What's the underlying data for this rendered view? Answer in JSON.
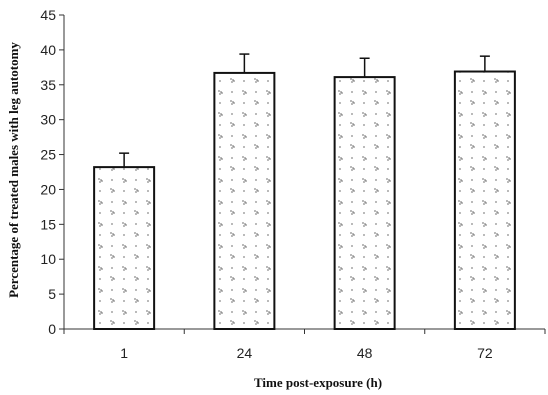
{
  "chart_data": {
    "type": "bar",
    "title": "",
    "xlabel": "Time post-exposure (h)",
    "ylabel": "Percentage of treated males with leg autotomy",
    "categories": [
      "1",
      "24",
      "48",
      "72"
    ],
    "values": [
      23.2,
      36.7,
      36.1,
      36.9
    ],
    "error": [
      2.0,
      2.7,
      2.7,
      2.2
    ],
    "ylim": [
      0,
      45
    ],
    "yticks": [
      "0",
      "5",
      "10",
      "15",
      "20",
      "25",
      "30",
      "35",
      "40",
      "45"
    ],
    "grid": false,
    "legend": "none",
    "bar_fill_color": "#ffffff",
    "bar_pattern_color": "#8a8a8a",
    "bar_pattern": "dotted-stipple"
  }
}
